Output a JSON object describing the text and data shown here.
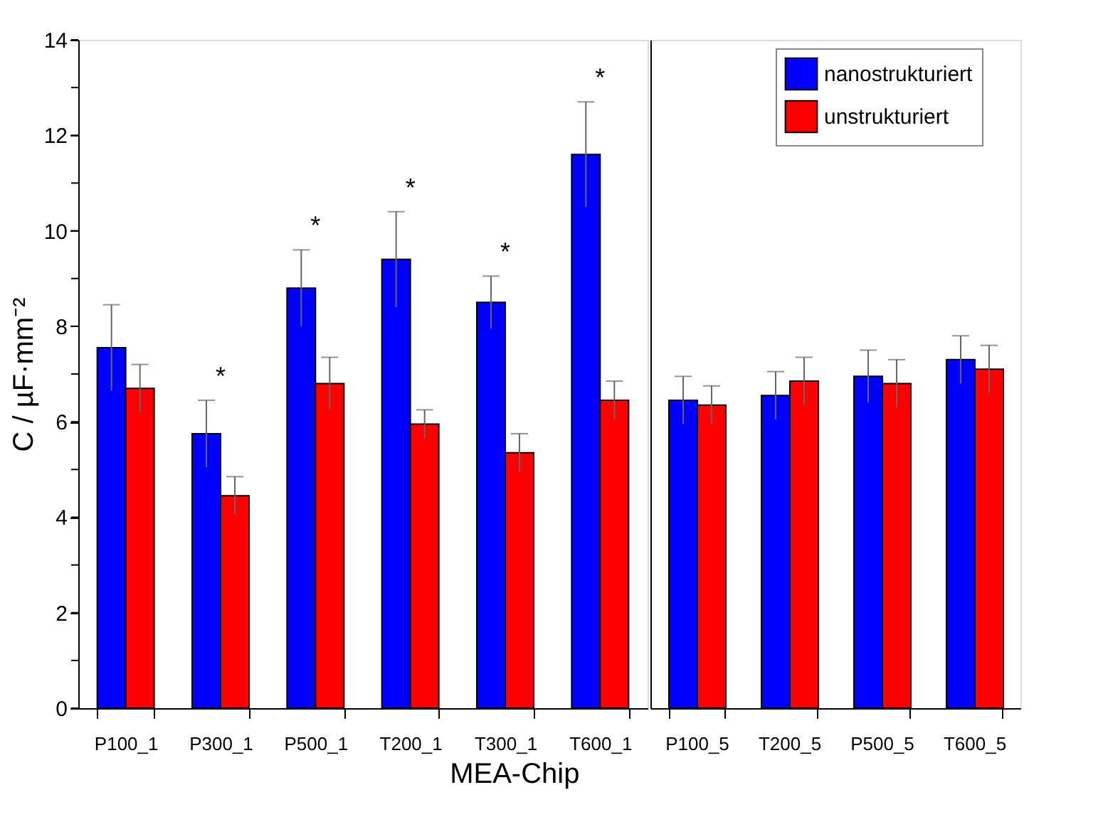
{
  "chart_data": [
    {
      "type": "bar",
      "categories": [
        "P100_1",
        "P300_1",
        "P500_1",
        "T200_1",
        "T300_1",
        "T600_1"
      ],
      "ylabel": "C / µF·mm⁻²",
      "xlabel": "MEA-Chip",
      "series": [
        {
          "name": "nanostrukturiert",
          "color": "#0000ff",
          "values": [
            7.55,
            5.75,
            8.8,
            9.4,
            8.5,
            11.6
          ],
          "errors": [
            0.9,
            0.7,
            0.8,
            1.0,
            0.55,
            1.1
          ]
        },
        {
          "name": "unstrukturiert",
          "color": "#ff0000",
          "values": [
            6.7,
            4.45,
            6.8,
            5.95,
            5.35,
            6.45
          ],
          "errors": [
            0.5,
            0.4,
            0.55,
            0.3,
            0.4,
            0.4
          ]
        }
      ],
      "ylim": [
        0,
        14
      ],
      "yticks": [
        0,
        {
          "value": 1,
          "label": null
        },
        2,
        {
          "value": 3,
          "label": null
        },
        4,
        {
          "value": 5,
          "label": null
        },
        6,
        {
          "value": 7,
          "label": null
        },
        8,
        {
          "value": 9,
          "label": null
        },
        10,
        {
          "value": 11,
          "label": null
        },
        12,
        {
          "value": 13,
          "label": null
        },
        14
      ],
      "grid": false,
      "legend": "top right",
      "annotations": [
        "*",
        "*",
        "*",
        "*",
        "*"
      ]
    },
    {
      "type": "bar",
      "categories": [
        "P100_5",
        "T200_5",
        "P500_5",
        "T600_5"
      ],
      "tick_labels": "x",
      "series": [
        {
          "name": "nanostrukturiert",
          "color": "#0000ff",
          "values": [
            6.45,
            6.55,
            6.95,
            7.3
          ],
          "errors": [
            0.5,
            0.5,
            0.55,
            0.5
          ]
        },
        {
          "name": "unstrukturiert",
          "color": "#ff0000",
          "values": [
            6.35,
            6.85,
            6.8,
            7.1
          ],
          "errors": [
            0.4,
            0.5,
            0.5,
            0.5
          ]
        }
      ],
      "ylim": [
        0,
        14
      ],
      "grid": false
    }
  ]
}
